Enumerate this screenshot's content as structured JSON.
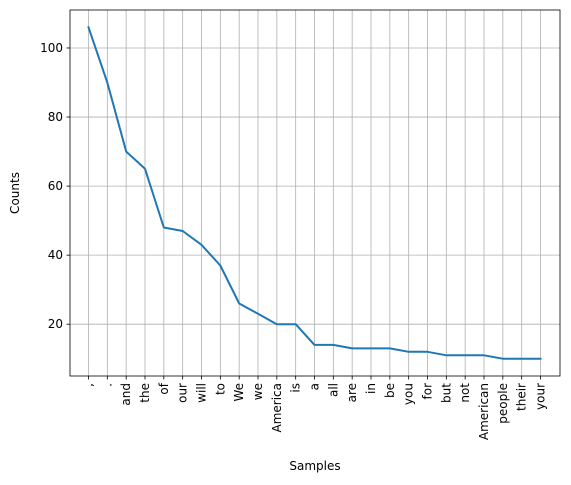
{
  "chart_data": {
    "type": "line",
    "title": "",
    "xlabel": "Samples",
    "ylabel": "Counts",
    "categories": [
      ",",
      ".",
      "and",
      "the",
      "of",
      "our",
      "will",
      "to",
      "We",
      "we",
      "America",
      "is",
      "a",
      "all",
      "are",
      "in",
      "be",
      "you",
      "for",
      "but",
      "not",
      "American",
      "people",
      "their",
      "your"
    ],
    "series": [
      {
        "values": [
          106,
          90,
          70,
          65,
          48,
          47,
          43,
          37,
          26,
          23,
          20,
          20,
          14,
          14,
          13,
          13,
          13,
          12,
          12,
          11,
          11,
          11,
          10,
          10,
          10
        ]
      }
    ],
    "ylim": [
      5,
      111
    ],
    "yticks": [
      20,
      40,
      60,
      80,
      100
    ],
    "grid": true,
    "line_color": "#1f77b4",
    "grid_color": "#b0b0b0"
  }
}
